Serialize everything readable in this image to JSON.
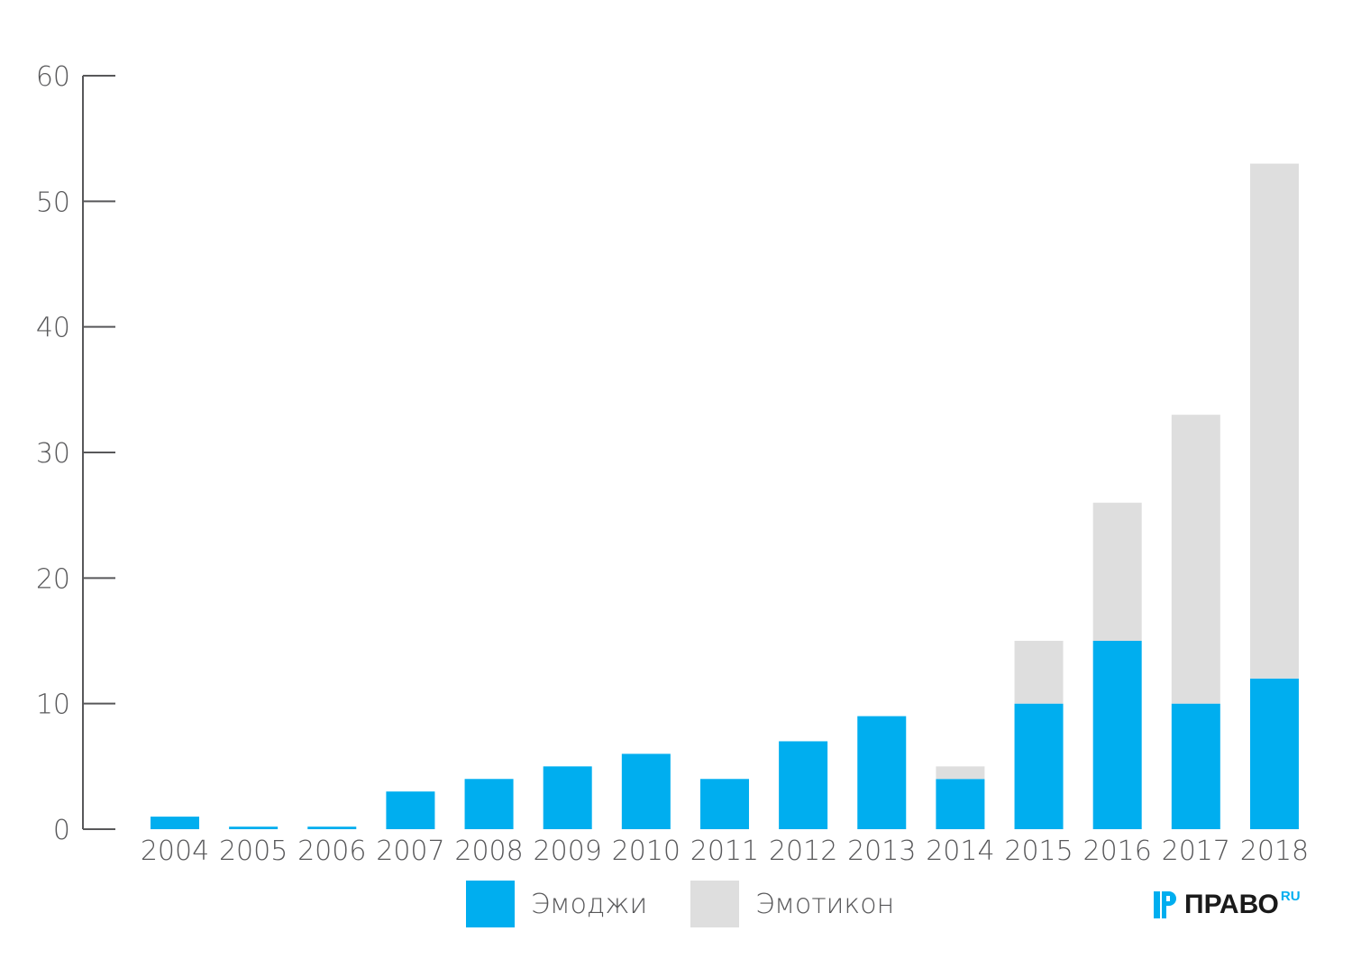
{
  "chart_data": {
    "type": "bar",
    "stacked": true,
    "categories": [
      "2004",
      "2005",
      "2006",
      "2007",
      "2008",
      "2009",
      "2010",
      "2011",
      "2012",
      "2013",
      "2014",
      "2015",
      "2016",
      "2017",
      "2018"
    ],
    "series": [
      {
        "name": "Эмоджи",
        "color": "#00aeef",
        "values": [
          1,
          0.2,
          0.2,
          3,
          4,
          5,
          6,
          4,
          7,
          9,
          4,
          10,
          15,
          10,
          12
        ]
      },
      {
        "name": "Эмотикон",
        "color": "#dedede",
        "values": [
          0,
          0,
          0,
          0,
          0,
          0,
          0,
          0,
          0,
          0,
          1,
          5,
          11,
          23,
          41
        ]
      }
    ],
    "title": "",
    "xlabel": "",
    "ylabel": "",
    "ylim": [
      0,
      60
    ],
    "yticks": [
      "0",
      "10",
      "20",
      "30",
      "40",
      "50",
      "60"
    ],
    "grid": false,
    "legend_position": "bottom"
  },
  "legend": {
    "items": [
      {
        "label": "Эмоджи",
        "color": "#00aeef"
      },
      {
        "label": "Эмотикон",
        "color": "#dedede"
      }
    ]
  },
  "logo": {
    "text": "ПРАВО",
    "suffix": "RU",
    "icon": "pravo-logo-icon",
    "accent_color": "#00aeef"
  }
}
